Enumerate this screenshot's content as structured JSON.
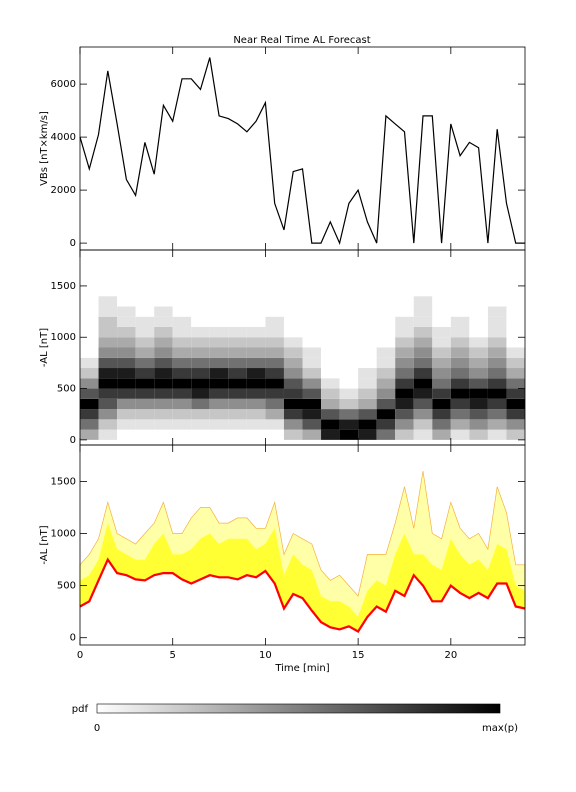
{
  "chart_data": [
    {
      "type": "line",
      "title": "Near Real Time AL Forecast",
      "ylabel": "VBs [nT×km/s]",
      "color": "#000000",
      "x": [
        0,
        0.5,
        1,
        1.5,
        2,
        2.5,
        3,
        3.5,
        4,
        4.5,
        5,
        5.5,
        6,
        6.5,
        7,
        7.5,
        8,
        8.5,
        9,
        9.5,
        10,
        10.5,
        11,
        11.5,
        12,
        12.5,
        13,
        13.5,
        14,
        14.5,
        15,
        15.5,
        16,
        16.5,
        17,
        17.5,
        18,
        18.5,
        19,
        19.5,
        20,
        20.5,
        21,
        21.5,
        22,
        22.5,
        23,
        23.5,
        24
      ],
      "values": [
        4000,
        2800,
        4100,
        6500,
        4500,
        2400,
        1800,
        3800,
        2600,
        5200,
        4600,
        6200,
        6200,
        5800,
        7000,
        4800,
        4700,
        4500,
        4200,
        4600,
        5300,
        1500,
        500,
        2700,
        2800,
        0,
        0,
        800,
        0,
        1500,
        2000,
        800,
        0,
        4800,
        4500,
        4200,
        0,
        4800,
        4800,
        0,
        4500,
        3300,
        3800,
        3600,
        0,
        4300,
        1500,
        0,
        0
      ],
      "xlim": [
        0,
        24
      ],
      "ylim": [
        -260,
        7400
      ],
      "yticks": [
        0,
        2000,
        4000,
        6000
      ]
    },
    {
      "type": "heatmap",
      "ylabel": "-AL [nT]",
      "x": [
        0.5,
        1.5,
        2.5,
        3.5,
        4.5,
        5.5,
        6.5,
        7.5,
        8.5,
        9.5,
        10.5,
        11.5,
        12.5,
        13.5,
        14.5,
        15.5,
        16.5,
        17.5,
        18.5,
        19.5,
        20.5,
        21.5,
        22.5,
        23.5
      ],
      "y": [
        50,
        150,
        250,
        350,
        450,
        550,
        650,
        750,
        850,
        950,
        1050,
        1150,
        1250,
        1350,
        1450
      ],
      "z": [
        [
          3,
          5,
          7,
          9,
          6,
          4,
          2,
          1,
          0,
          0,
          0,
          0,
          0,
          0,
          0
        ],
        [
          1,
          2,
          4,
          6,
          7,
          9,
          8,
          6,
          4,
          3,
          2,
          2,
          1,
          1,
          0
        ],
        [
          0,
          1,
          2,
          4,
          7,
          9,
          8,
          6,
          4,
          3,
          2,
          1,
          1,
          0,
          0
        ],
        [
          0,
          1,
          2,
          4,
          7,
          9,
          7,
          5,
          3,
          2,
          1,
          1,
          0,
          0,
          0
        ],
        [
          0,
          1,
          2,
          4,
          7,
          9,
          8,
          6,
          4,
          3,
          2,
          1,
          1,
          0,
          0
        ],
        [
          0,
          1,
          2,
          4,
          7,
          9,
          7,
          5,
          3,
          2,
          1,
          1,
          0,
          0,
          0
        ],
        [
          0,
          1,
          2,
          5,
          8,
          9,
          7,
          5,
          3,
          2,
          1,
          0,
          0,
          0,
          0
        ],
        [
          0,
          1,
          2,
          4,
          7,
          9,
          8,
          5,
          3,
          2,
          1,
          0,
          0,
          0,
          0
        ],
        [
          0,
          1,
          2,
          4,
          7,
          9,
          7,
          5,
          3,
          2,
          1,
          0,
          0,
          0,
          0
        ],
        [
          0,
          1,
          2,
          4,
          7,
          9,
          8,
          5,
          3,
          2,
          1,
          0,
          0,
          0,
          0
        ],
        [
          0,
          1,
          3,
          5,
          7,
          9,
          7,
          5,
          3,
          2,
          1,
          1,
          0,
          0,
          0
        ],
        [
          2,
          4,
          7,
          9,
          7,
          6,
          4,
          3,
          2,
          1,
          0,
          0,
          0,
          0,
          0
        ],
        [
          3,
          6,
          8,
          9,
          6,
          4,
          2,
          1,
          1,
          0,
          0,
          0,
          0,
          0,
          0
        ],
        [
          8,
          9,
          6,
          3,
          2,
          1,
          0,
          0,
          0,
          0,
          0,
          0,
          0,
          0,
          0
        ],
        [
          9,
          8,
          5,
          2,
          1,
          0,
          0,
          0,
          0,
          0,
          0,
          0,
          0,
          0,
          0
        ],
        [
          8,
          9,
          6,
          3,
          2,
          1,
          1,
          0,
          0,
          0,
          0,
          0,
          0,
          0,
          0
        ],
        [
          5,
          7,
          9,
          6,
          4,
          3,
          2,
          1,
          1,
          0,
          0,
          0,
          0,
          0,
          0
        ],
        [
          2,
          4,
          6,
          8,
          9,
          7,
          5,
          4,
          3,
          2,
          1,
          1,
          0,
          0,
          0
        ],
        [
          1,
          2,
          4,
          6,
          8,
          9,
          7,
          5,
          4,
          3,
          2,
          1,
          1,
          1,
          0
        ],
        [
          3,
          5,
          7,
          9,
          7,
          5,
          4,
          3,
          2,
          1,
          1,
          0,
          0,
          0,
          0
        ],
        [
          1,
          3,
          5,
          7,
          9,
          7,
          5,
          4,
          3,
          2,
          1,
          1,
          0,
          0,
          0
        ],
        [
          2,
          4,
          6,
          8,
          9,
          6,
          4,
          3,
          2,
          1,
          0,
          0,
          0,
          0,
          0
        ],
        [
          1,
          3,
          5,
          7,
          9,
          7,
          5,
          4,
          3,
          2,
          1,
          1,
          1,
          0,
          0
        ],
        [
          2,
          4,
          7,
          9,
          7,
          5,
          3,
          2,
          1,
          0,
          0,
          0,
          0,
          0,
          0
        ]
      ],
      "zlim": [
        0,
        9
      ],
      "xlim": [
        0,
        24
      ],
      "ylim": [
        -50,
        1850
      ],
      "yticks": [
        0,
        500,
        1000,
        1500
      ],
      "colorbar_label": "pdf",
      "colorbar_ticks": [
        0,
        {
          "value": 9,
          "label": "max(p)"
        }
      ]
    },
    {
      "type": "band",
      "ylabel": "-AL [nT]",
      "xlabel": "Time [min]",
      "x": [
        0,
        0.5,
        1,
        1.5,
        2,
        2.5,
        3,
        3.5,
        4,
        4.5,
        5,
        5.5,
        6,
        6.5,
        7,
        7.5,
        8,
        8.5,
        9,
        9.5,
        10,
        10.5,
        11,
        11.5,
        12,
        12.5,
        13,
        13.5,
        14,
        14.5,
        15,
        15.5,
        16,
        16.5,
        17,
        17.5,
        18,
        18.5,
        19,
        19.5,
        20,
        20.5,
        21,
        21.5,
        22,
        22.5,
        23,
        23.5,
        24
      ],
      "series": [
        {
          "color": "#ffffa8",
          "edge_color": "#f5b041",
          "values": [
            700,
            800,
            950,
            1300,
            1000,
            950,
            900,
            1000,
            1100,
            1300,
            1000,
            1000,
            1150,
            1250,
            1250,
            1100,
            1100,
            1150,
            1150,
            1050,
            1050,
            1300,
            800,
            1000,
            950,
            900,
            650,
            550,
            600,
            500,
            400,
            800,
            800,
            800,
            1100,
            1450,
            1050,
            1600,
            1000,
            950,
            1300,
            1050,
            950,
            1000,
            850,
            1450,
            1200,
            700,
            700
          ]
        },
        {
          "color": "#ffff33",
          "values": [
            550,
            600,
            750,
            1100,
            850,
            800,
            750,
            750,
            900,
            1000,
            800,
            800,
            850,
            950,
            1000,
            900,
            950,
            950,
            950,
            850,
            900,
            1050,
            600,
            800,
            700,
            650,
            400,
            350,
            350,
            300,
            200,
            450,
            550,
            500,
            800,
            1000,
            800,
            800,
            700,
            650,
            950,
            800,
            700,
            750,
            650,
            900,
            850,
            500,
            450
          ]
        },
        {
          "color": "#ff0000",
          "values": [
            300,
            350,
            550,
            750,
            620,
            600,
            560,
            550,
            600,
            620,
            620,
            560,
            520,
            560,
            600,
            580,
            580,
            560,
            600,
            580,
            640,
            520,
            280,
            420,
            380,
            260,
            150,
            100,
            80,
            110,
            60,
            200,
            300,
            250,
            450,
            400,
            600,
            500,
            350,
            350,
            500,
            430,
            380,
            430,
            380,
            520,
            520,
            300,
            280
          ]
        }
      ],
      "xlim": [
        0,
        24
      ],
      "ylim": [
        -70,
        1850
      ],
      "yticks": [
        0,
        500,
        1000,
        1500
      ],
      "xticks": [
        0,
        5,
        10,
        15,
        20
      ]
    }
  ]
}
